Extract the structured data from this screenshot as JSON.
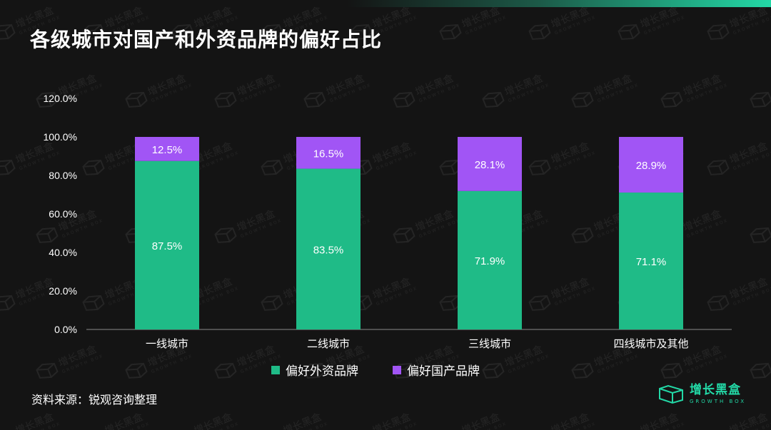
{
  "title": "各级城市对国产和外资品牌的偏好占比",
  "source": "资料来源：锐观咨询整理",
  "brand": {
    "name": "增长黑盒",
    "subtitle": "GROWTH BOX",
    "color": "#23d8a6"
  },
  "watermark": {
    "name": "增长黑盒",
    "subtitle": "GROWTH BOX"
  },
  "chart_data": {
    "type": "bar",
    "stacked": true,
    "categories": [
      "一线城市",
      "二线城市",
      "三线城市",
      "四线城市及其他"
    ],
    "series": [
      {
        "name": "偏好外资品牌",
        "values": [
          87.5,
          83.5,
          71.9,
          71.1
        ],
        "labels": [
          "87.5%",
          "83.5%",
          "71.9%",
          "71.1%"
        ],
        "color": "#1fbb87"
      },
      {
        "name": "偏好国产品牌",
        "values": [
          12.5,
          16.5,
          28.1,
          28.9
        ],
        "labels": [
          "12.5%",
          "16.5%",
          "28.1%",
          "28.9%"
        ],
        "color": "#a155f5"
      }
    ],
    "ylim": [
      0,
      120
    ],
    "yticks": [
      "0.0%",
      "20.0%",
      "40.0%",
      "60.0%",
      "80.0%",
      "100.0%",
      "120.0%"
    ],
    "ytick_values": [
      0,
      20,
      40,
      60,
      80,
      100,
      120
    ],
    "grid": false,
    "legend_position": "bottom"
  }
}
